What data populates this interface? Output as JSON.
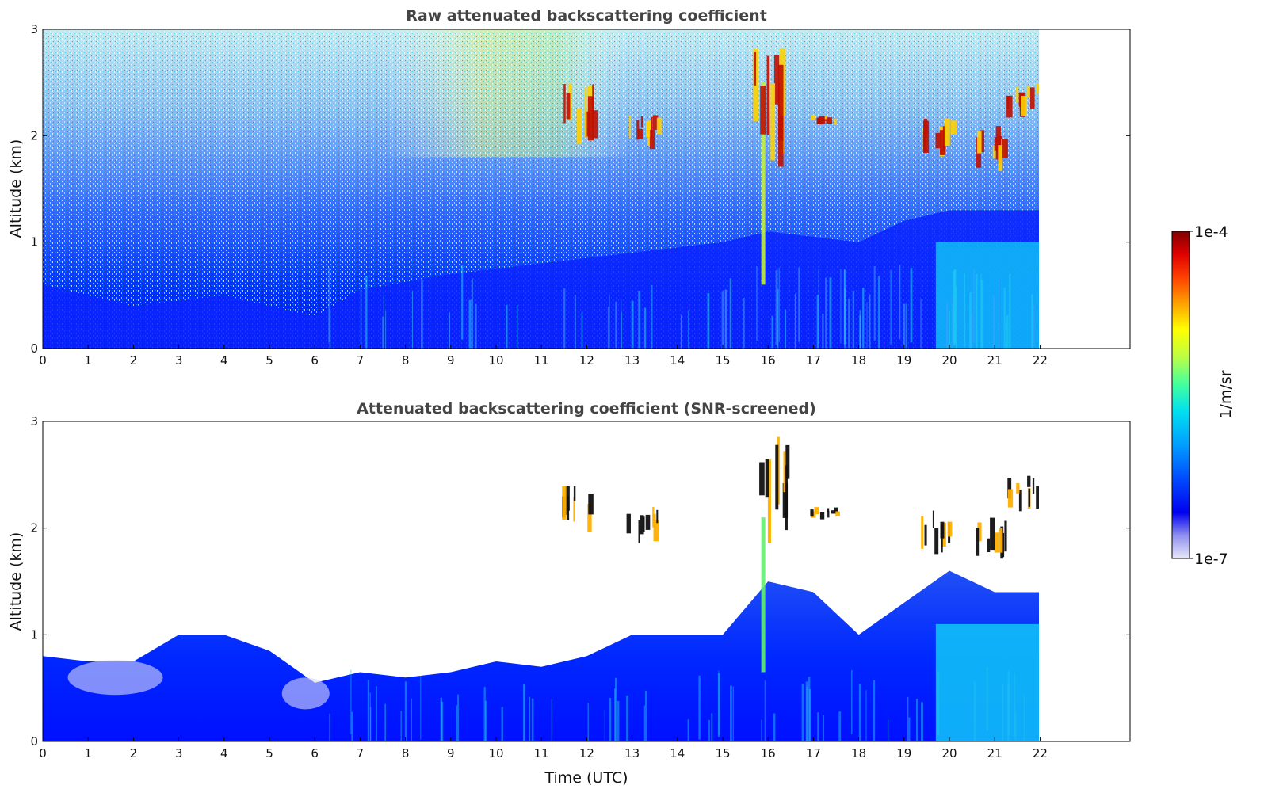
{
  "chart_data": [
    {
      "type": "heatmap",
      "title": "Raw attenuated backscattering coefficient",
      "xlabel": "",
      "ylabel": "Altitude (km)",
      "xlim": [
        0,
        24
      ],
      "ylim": [
        0,
        3
      ],
      "x_ticks": [
        "0",
        "1",
        "2",
        "3",
        "4",
        "5",
        "6",
        "7",
        "8",
        "9",
        "10",
        "11",
        "12",
        "13",
        "14",
        "15",
        "16",
        "17",
        "18",
        "19",
        "20",
        "21",
        "22"
      ],
      "y_ticks": [
        "0",
        "1",
        "2",
        "3"
      ],
      "data_x_extent": [
        0,
        22
      ],
      "screened": false,
      "clouds": [
        {
          "time": 11.8,
          "alt": [
            1.9,
            2.5
          ]
        },
        {
          "time": 13.2,
          "alt": [
            1.9,
            2.2
          ]
        },
        {
          "time": 16.0,
          "alt": [
            1.9,
            2.9
          ]
        },
        {
          "time": 17.2,
          "alt": [
            2.1,
            2.2
          ]
        },
        {
          "time": 19.7,
          "alt": [
            1.8,
            2.2
          ]
        },
        {
          "time": 20.9,
          "alt": [
            1.7,
            2.1
          ]
        },
        {
          "time": 21.6,
          "alt": [
            2.2,
            2.5
          ]
        }
      ]
    },
    {
      "type": "heatmap",
      "title": "Attenuated backscattering coefficient (SNR-screened)",
      "xlabel": "Time (UTC)",
      "ylabel": "Altitude (km)",
      "xlim": [
        0,
        24
      ],
      "ylim": [
        0,
        3
      ],
      "x_ticks": [
        "0",
        "1",
        "2",
        "3",
        "4",
        "5",
        "6",
        "7",
        "8",
        "9",
        "10",
        "11",
        "12",
        "13",
        "14",
        "15",
        "16",
        "17",
        "18",
        "19",
        "20",
        "21",
        "22"
      ],
      "y_ticks": [
        "0",
        "1",
        "2",
        "3"
      ],
      "data_x_extent": [
        0,
        22
      ],
      "screened": true,
      "boundary_layer_top_km": [
        [
          0,
          0.8
        ],
        [
          1,
          0.75
        ],
        [
          2,
          0.75
        ],
        [
          3,
          1.0
        ],
        [
          4,
          1.0
        ],
        [
          5,
          0.85
        ],
        [
          6,
          0.55
        ],
        [
          7,
          0.65
        ],
        [
          8,
          0.6
        ],
        [
          9,
          0.65
        ],
        [
          10,
          0.75
        ],
        [
          11,
          0.7
        ],
        [
          12,
          0.8
        ],
        [
          13,
          1.0
        ],
        [
          14,
          1.0
        ],
        [
          15,
          1.0
        ],
        [
          16,
          1.5
        ],
        [
          17,
          1.4
        ],
        [
          18,
          1.0
        ],
        [
          19,
          1.3
        ],
        [
          20,
          1.6
        ],
        [
          21,
          1.4
        ],
        [
          22,
          1.4
        ]
      ]
    }
  ],
  "colorbar": {
    "label": "1/m/sr",
    "max_label": "1e-4",
    "min_label": "1e-7",
    "scale": "log",
    "colors": [
      "#e8e8f8",
      "#9090f0",
      "#0000f0",
      "#0050ff",
      "#00a0ff",
      "#00e0f0",
      "#40ffa0",
      "#c0ff40",
      "#ffff00",
      "#ffa000",
      "#ff4000",
      "#e00000",
      "#800000"
    ]
  }
}
